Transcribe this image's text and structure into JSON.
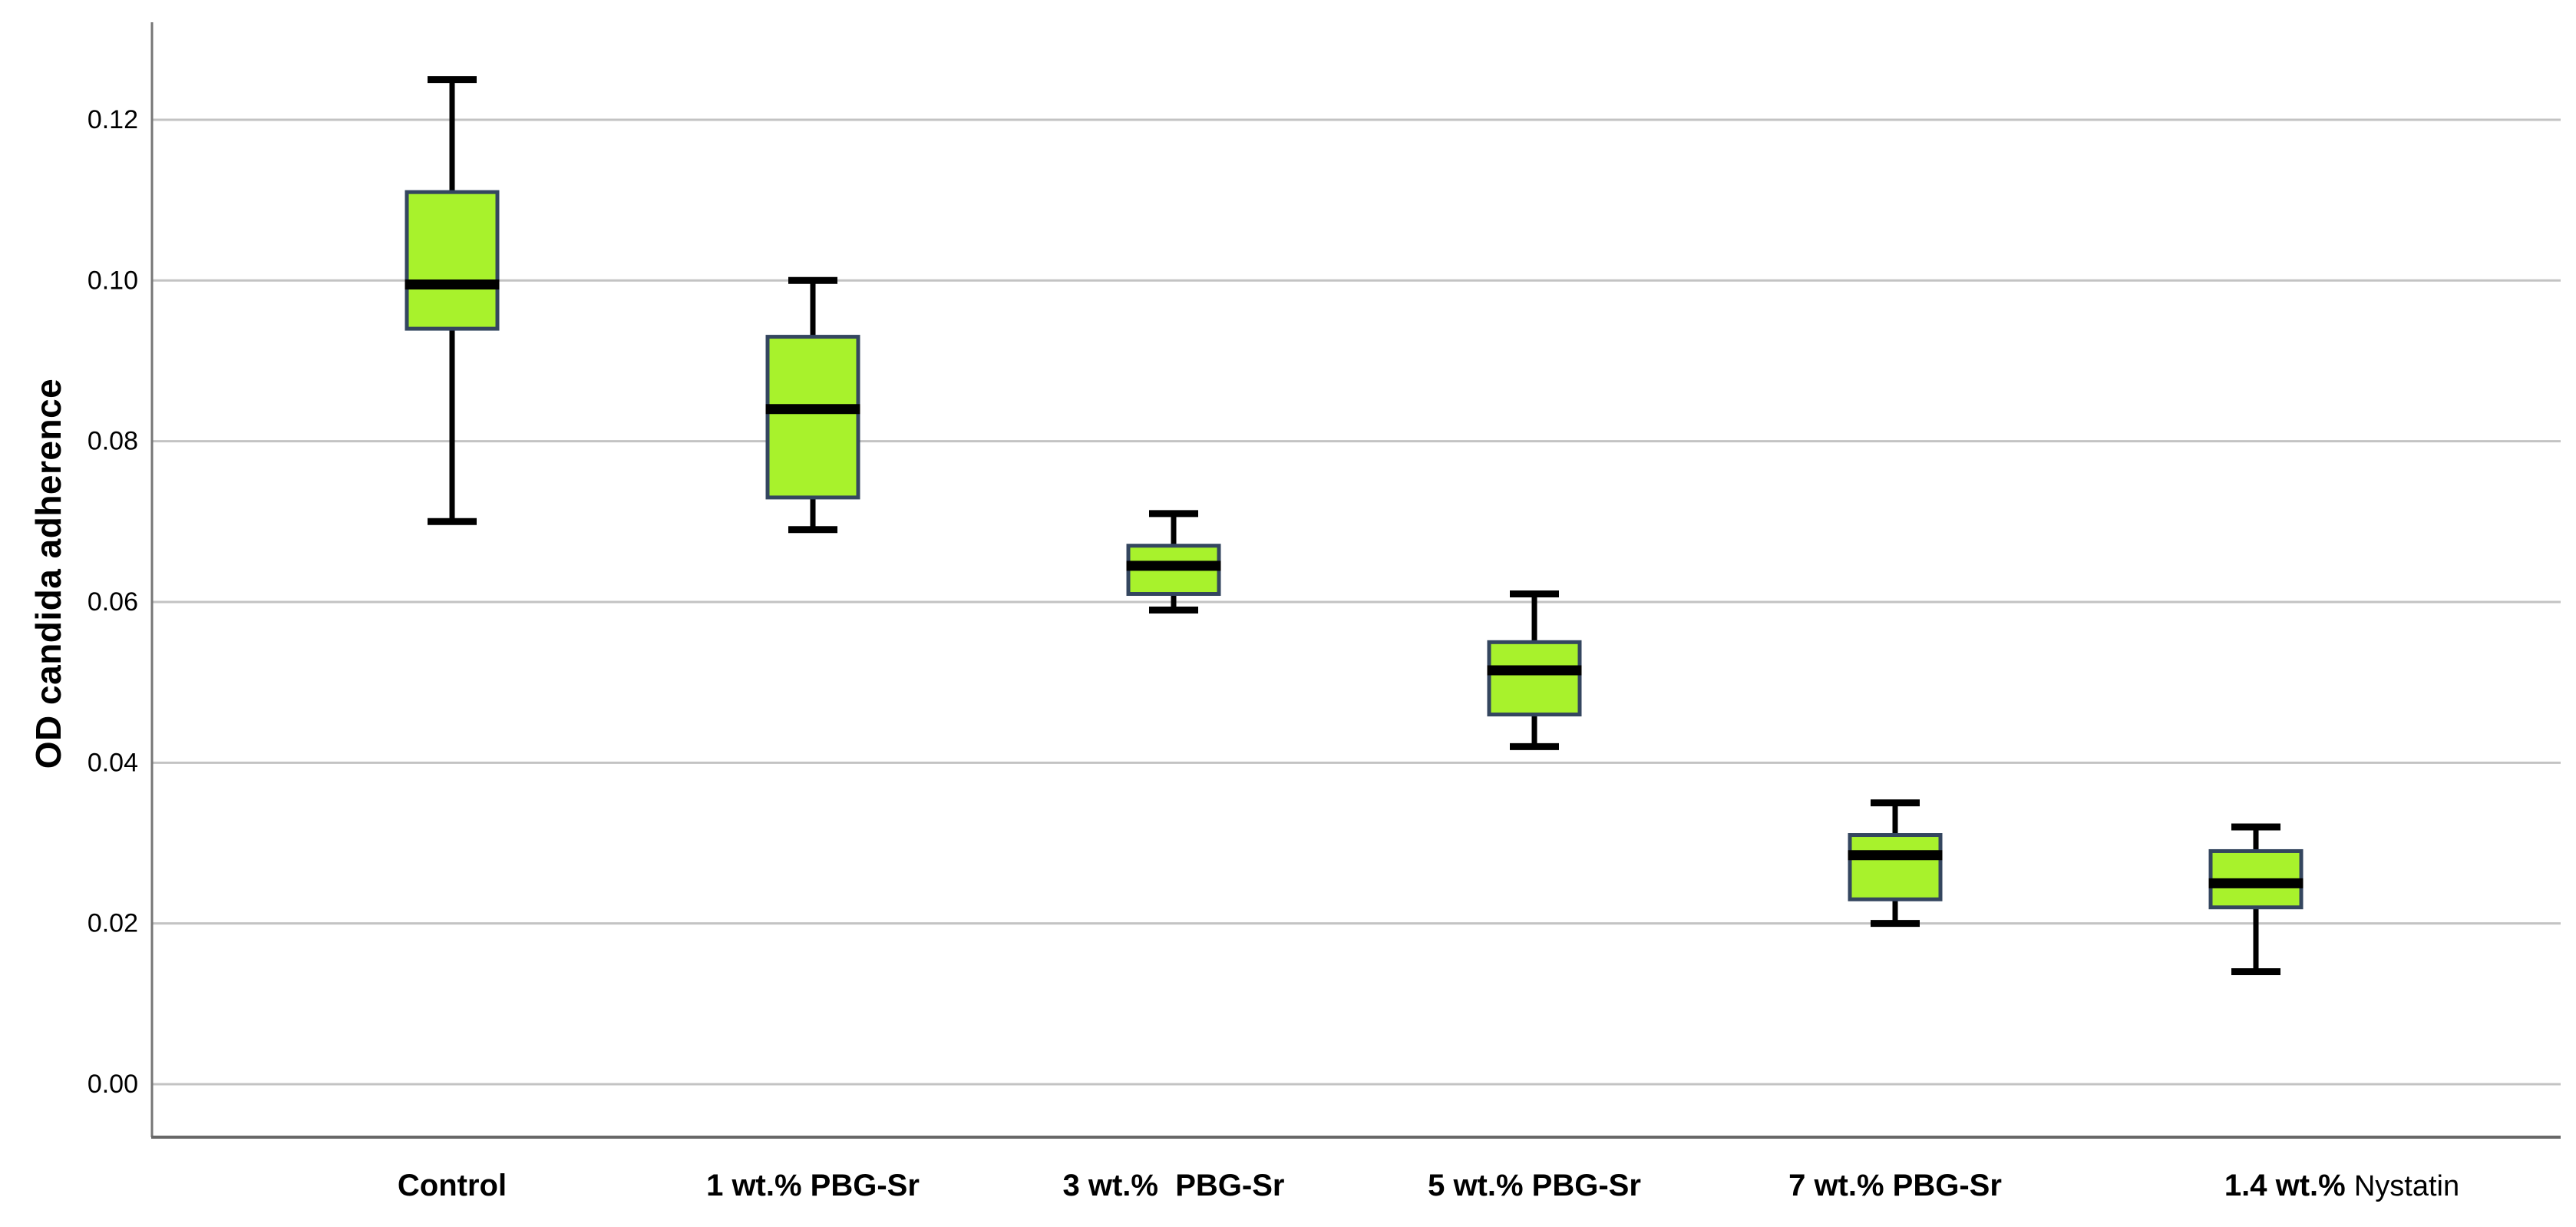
{
  "figure": {
    "background": "#ffffff"
  },
  "chart_data": {
    "type": "box",
    "title": "",
    "xlabel": "",
    "ylabel": "OD candida adherence",
    "grid": true,
    "legend": false,
    "ylim": [
      -0.0066,
      0.1322
    ],
    "y_ticks": [
      {
        "value": 0.0,
        "label": "0.00"
      },
      {
        "value": 0.02,
        "label": "0.02"
      },
      {
        "value": 0.04,
        "label": "0.04"
      },
      {
        "value": 0.06,
        "label": "0.06"
      },
      {
        "value": 0.08,
        "label": "0.08"
      },
      {
        "value": 0.1,
        "label": "0.10"
      },
      {
        "value": 0.12,
        "label": "0.12"
      }
    ],
    "categories": [
      "Control",
      "1 wt.% PBG-Sr",
      "3 wt.%  PBG-Sr",
      "5 wt.% PBG-Sr",
      "7 wt.% PBG-Sr",
      "1.4 wt.% Nystatin"
    ],
    "boxes": [
      {
        "category": "Control",
        "label_parts": [
          {
            "text": "Control",
            "bold": true
          }
        ],
        "whisker_min": 0.07,
        "q1": 0.094,
        "median": 0.0995,
        "q3": 0.111,
        "whisker_max": 0.125
      },
      {
        "category": "1 wt.% PBG-Sr",
        "label_parts": [
          {
            "text": "1 wt.% PBG-Sr",
            "bold": true
          }
        ],
        "whisker_min": 0.069,
        "q1": 0.073,
        "median": 0.084,
        "q3": 0.093,
        "whisker_max": 0.1
      },
      {
        "category": "3 wt.%  PBG-Sr",
        "label_parts": [
          {
            "text": "3 wt.%  PBG-Sr",
            "bold": true
          }
        ],
        "whisker_min": 0.059,
        "q1": 0.061,
        "median": 0.0645,
        "q3": 0.067,
        "whisker_max": 0.071
      },
      {
        "category": "5 wt.% PBG-Sr",
        "label_parts": [
          {
            "text": "5 wt.% PBG-Sr",
            "bold": true
          }
        ],
        "whisker_min": 0.042,
        "q1": 0.046,
        "median": 0.0515,
        "q3": 0.055,
        "whisker_max": 0.061
      },
      {
        "category": "7 wt.% PBG-Sr",
        "label_parts": [
          {
            "text": "7 wt.% PBG-Sr",
            "bold": true
          }
        ],
        "whisker_min": 0.02,
        "q1": 0.023,
        "median": 0.0285,
        "q3": 0.031,
        "whisker_max": 0.035
      },
      {
        "category": "1.4 wt.% Nystatin",
        "label_parts": [
          {
            "text": "1.4 wt.% ",
            "bold": true
          },
          {
            "text": "Nystatin",
            "bold": false
          }
        ],
        "whisker_min": 0.014,
        "q1": 0.022,
        "median": 0.025,
        "q3": 0.029,
        "whisker_max": 0.032
      }
    ],
    "colors": {
      "box_fill": "#a8f22c",
      "box_border": "#34465f",
      "median": "#000000",
      "whisker": "#000000",
      "gridline": "#c3c3c3",
      "y_axis_line": "#767676",
      "x_axis_line": "#686868",
      "label_text": "#000000",
      "background": "#ffffff"
    }
  }
}
